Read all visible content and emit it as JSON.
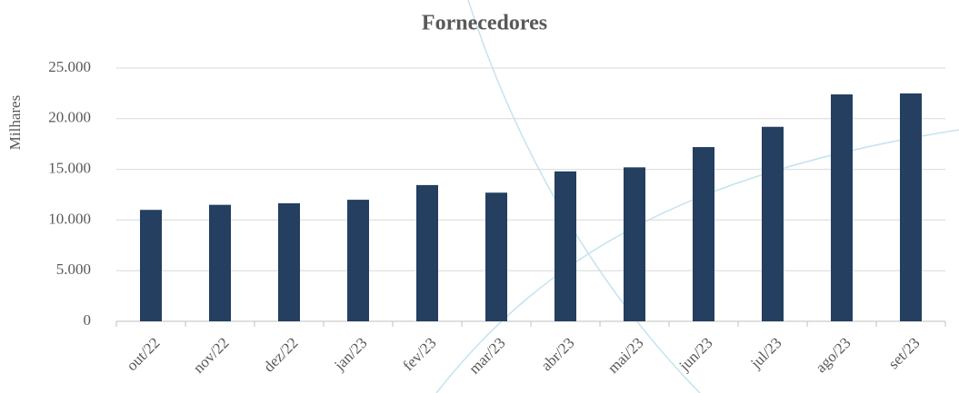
{
  "chart_data": {
    "type": "bar",
    "title": "Fornecedores",
    "y_label": "Milhares",
    "categories": [
      "out/22",
      "nov/22",
      "dez/22",
      "jan/23",
      "fev/23",
      "mar/23",
      "abr/23",
      "mai/23",
      "jun/23",
      "jul/23",
      "ago/23",
      "set/23"
    ],
    "values": [
      11000,
      11500,
      11650,
      12000,
      13450,
      12700,
      14800,
      15200,
      17200,
      19200,
      22400,
      22500
    ],
    "color": "#243f60",
    "ylim": [
      0,
      25000
    ],
    "yticks": [
      0,
      {
        "value": 5000,
        "label": "5.000"
      },
      {
        "value": 10000,
        "label": "10.000"
      },
      {
        "value": 15000,
        "label": "15.000"
      },
      {
        "value": 20000,
        "label": "20.000"
      },
      {
        "value": 25000,
        "label": "25.000"
      }
    ],
    "grid": true
  }
}
